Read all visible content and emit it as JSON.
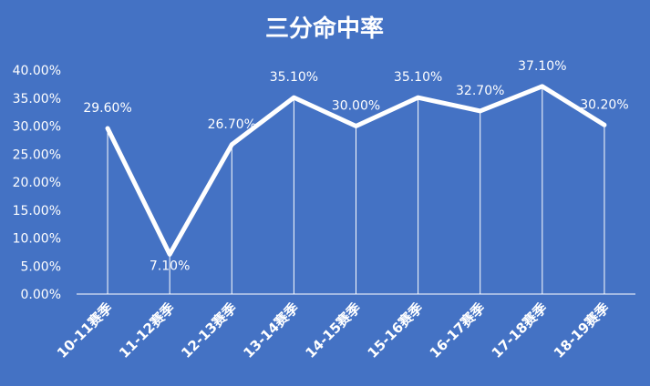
{
  "chart_data": {
    "type": "line",
    "title": "三分命中率",
    "categories": [
      "10-11赛季",
      "11-12赛季",
      "12-13赛季",
      "13-14赛季",
      "14-15赛季",
      "15-16赛季",
      "16-17赛季",
      "17-18赛季",
      "18-19赛季"
    ],
    "values": [
      29.6,
      7.1,
      26.7,
      35.1,
      30.0,
      35.1,
      32.7,
      37.1,
      30.2
    ],
    "data_labels": [
      "29.60%",
      "7.10%",
      "26.70%",
      "35.10%",
      "30.00%",
      "35.10%",
      "32.70%",
      "37.10%",
      "30.20%"
    ],
    "ylim": [
      0,
      40
    ],
    "y_ticks": [
      "0.00%",
      "5.00%",
      "10.00%",
      "15.00%",
      "20.00%",
      "25.00%",
      "30.00%",
      "35.00%",
      "40.00%"
    ],
    "grid": false,
    "drop_lines": true,
    "colors": {
      "background": "#4472c4",
      "line": "#ffffff"
    }
  }
}
